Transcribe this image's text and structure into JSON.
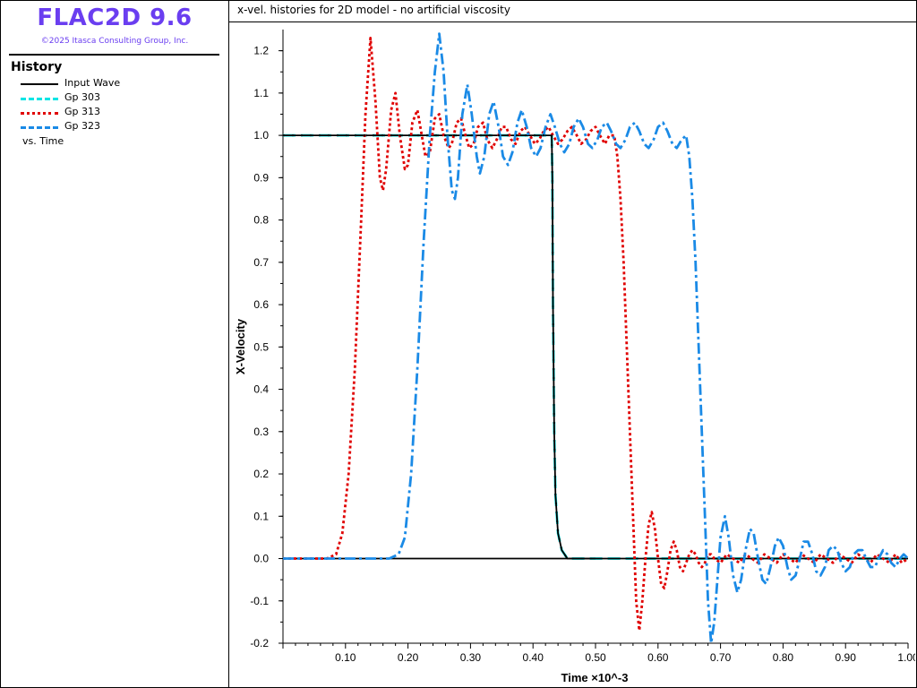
{
  "app": {
    "title": "FLAC2D 9.6",
    "copyright": "©2025 Itasca Consulting Group, Inc."
  },
  "legend": {
    "title": "History",
    "items": [
      {
        "label": "Input Wave",
        "color": "#000000",
        "dash": "solid"
      },
      {
        "label": "Gp 303",
        "color": "#00e5e5",
        "dash": "long-dash"
      },
      {
        "label": "Gp 313",
        "color": "#e00000",
        "dash": "dotted"
      },
      {
        "label": "Gp 323",
        "color": "#1a8ae6",
        "dash": "dash-dot"
      }
    ],
    "vs_label": "vs. Time"
  },
  "chart_data": {
    "type": "line",
    "title": "x-vel. histories for 2D model - no artificial viscosity",
    "xlabel": "Time ×10^-3",
    "ylabel": "X-Velocity",
    "xlim": [
      0.0,
      1.0
    ],
    "ylim": [
      -0.2,
      1.25
    ],
    "x_ticks": [
      "0.10",
      "0.20",
      "0.30",
      "0.40",
      "0.50",
      "0.60",
      "0.70",
      "0.80",
      "0.90",
      "1.00"
    ],
    "y_ticks": [
      "1.2",
      "1.1",
      "1.0",
      "0.9",
      "0.8",
      "0.7",
      "0.6",
      "0.5",
      "0.4",
      "0.3",
      "0.2",
      "0.1",
      "0.0",
      "-0.1",
      "-0.2"
    ],
    "grid": false,
    "series": [
      {
        "name": "Input Wave",
        "color": "#000000",
        "points": [
          [
            0.0,
            0.0
          ],
          [
            1.0,
            0.0
          ]
        ]
      },
      {
        "name": "Input Wave",
        "color": "#000000",
        "points": [
          [
            0.0,
            1.0
          ],
          [
            0.43,
            1.0
          ],
          [
            0.431,
            0.9
          ],
          [
            0.432,
            0.6
          ],
          [
            0.434,
            0.3
          ],
          [
            0.436,
            0.15
          ],
          [
            0.44,
            0.06
          ],
          [
            0.446,
            0.02
          ],
          [
            0.455,
            0.0
          ],
          [
            0.5,
            0.0
          ]
        ]
      },
      {
        "name": "Gp 303",
        "color": "#00e5e5",
        "points": [
          [
            0.0,
            1.0
          ],
          [
            0.43,
            1.0
          ],
          [
            0.431,
            0.9
          ],
          [
            0.432,
            0.6
          ],
          [
            0.434,
            0.3
          ],
          [
            0.436,
            0.15
          ],
          [
            0.44,
            0.06
          ],
          [
            0.446,
            0.02
          ],
          [
            0.455,
            0.0
          ],
          [
            1.0,
            0.0
          ]
        ]
      },
      {
        "name": "Gp 313",
        "color": "#e00000",
        "points": [
          [
            0.0,
            0.0
          ],
          [
            0.07,
            0.0
          ],
          [
            0.085,
            0.01
          ],
          [
            0.095,
            0.06
          ],
          [
            0.105,
            0.2
          ],
          [
            0.115,
            0.45
          ],
          [
            0.125,
            0.8
          ],
          [
            0.132,
            1.05
          ],
          [
            0.14,
            1.23
          ],
          [
            0.148,
            1.08
          ],
          [
            0.155,
            0.9
          ],
          [
            0.16,
            0.87
          ],
          [
            0.165,
            0.92
          ],
          [
            0.173,
            1.06
          ],
          [
            0.18,
            1.1
          ],
          [
            0.187,
            1.0
          ],
          [
            0.195,
            0.92
          ],
          [
            0.2,
            0.93
          ],
          [
            0.207,
            1.03
          ],
          [
            0.215,
            1.06
          ],
          [
            0.222,
            1.0
          ],
          [
            0.228,
            0.95
          ],
          [
            0.235,
            0.96
          ],
          [
            0.243,
            1.04
          ],
          [
            0.25,
            1.05
          ],
          [
            0.257,
            1.0
          ],
          [
            0.265,
            0.97
          ],
          [
            0.27,
            0.98
          ],
          [
            0.278,
            1.03
          ],
          [
            0.285,
            1.04
          ],
          [
            0.292,
            1.0
          ],
          [
            0.298,
            0.97
          ],
          [
            0.305,
            0.98
          ],
          [
            0.312,
            1.02
          ],
          [
            0.32,
            1.03
          ],
          [
            0.327,
            0.99
          ],
          [
            0.335,
            0.97
          ],
          [
            0.342,
            0.99
          ],
          [
            0.35,
            1.02
          ],
          [
            0.357,
            1.02
          ],
          [
            0.365,
            0.99
          ],
          [
            0.372,
            0.98
          ],
          [
            0.38,
            1.01
          ],
          [
            0.387,
            1.02
          ],
          [
            0.395,
            1.0
          ],
          [
            0.403,
            0.98
          ],
          [
            0.41,
            0.99
          ],
          [
            0.417,
            1.01
          ],
          [
            0.425,
            1.02
          ],
          [
            0.432,
            1.0
          ],
          [
            0.44,
            0.98
          ],
          [
            0.447,
            0.99
          ],
          [
            0.455,
            1.01
          ],
          [
            0.462,
            1.02
          ],
          [
            0.47,
            1.0
          ],
          [
            0.477,
            0.98
          ],
          [
            0.485,
            0.99
          ],
          [
            0.492,
            1.01
          ],
          [
            0.5,
            1.02
          ],
          [
            0.507,
            1.0
          ],
          [
            0.515,
            0.98
          ],
          [
            0.522,
            1.0
          ],
          [
            0.53,
            1.0
          ],
          [
            0.535,
            0.95
          ],
          [
            0.54,
            0.85
          ],
          [
            0.545,
            0.7
          ],
          [
            0.55,
            0.5
          ],
          [
            0.555,
            0.3
          ],
          [
            0.56,
            0.1
          ],
          [
            0.565,
            -0.1
          ],
          [
            0.57,
            -0.17
          ],
          [
            0.575,
            -0.1
          ],
          [
            0.58,
            0.0
          ],
          [
            0.585,
            0.08
          ],
          [
            0.59,
            0.11
          ],
          [
            0.595,
            0.07
          ],
          [
            0.6,
            0.0
          ],
          [
            0.605,
            -0.06
          ],
          [
            0.61,
            -0.07
          ],
          [
            0.615,
            -0.03
          ],
          [
            0.62,
            0.02
          ],
          [
            0.625,
            0.04
          ],
          [
            0.63,
            0.02
          ],
          [
            0.635,
            -0.02
          ],
          [
            0.64,
            -0.03
          ],
          [
            0.645,
            -0.01
          ],
          [
            0.65,
            0.01
          ],
          [
            0.655,
            0.02
          ],
          [
            0.66,
            0.01
          ],
          [
            0.665,
            -0.01
          ],
          [
            0.67,
            -0.02
          ],
          [
            0.675,
            -0.01
          ],
          [
            0.68,
            0.01
          ],
          [
            0.685,
            0.01
          ],
          [
            0.69,
            0.0
          ],
          [
            0.7,
            -0.01
          ],
          [
            0.71,
            0.01
          ],
          [
            0.72,
            0.0
          ],
          [
            0.73,
            -0.01
          ],
          [
            0.74,
            0.01
          ],
          [
            0.75,
            0.0
          ],
          [
            0.76,
            -0.01
          ],
          [
            0.77,
            0.01
          ],
          [
            0.78,
            0.0
          ],
          [
            0.79,
            -0.01
          ],
          [
            0.8,
            0.01
          ],
          [
            0.81,
            0.0
          ],
          [
            0.82,
            -0.01
          ],
          [
            0.83,
            0.01
          ],
          [
            0.84,
            0.0
          ],
          [
            0.85,
            -0.01
          ],
          [
            0.86,
            0.01
          ],
          [
            0.87,
            0.0
          ],
          [
            0.88,
            -0.01
          ],
          [
            0.89,
            0.01
          ],
          [
            0.9,
            0.0
          ],
          [
            0.91,
            -0.01
          ],
          [
            0.92,
            0.01
          ],
          [
            0.93,
            0.0
          ],
          [
            0.94,
            -0.01
          ],
          [
            0.95,
            0.01
          ],
          [
            0.96,
            0.0
          ],
          [
            0.97,
            -0.01
          ],
          [
            0.98,
            0.01
          ],
          [
            0.99,
            -0.01
          ],
          [
            1.0,
            0.0
          ]
        ]
      },
      {
        "name": "Gp 323",
        "color": "#1a8ae6",
        "points": [
          [
            0.0,
            0.0
          ],
          [
            0.17,
            0.0
          ],
          [
            0.185,
            0.01
          ],
          [
            0.195,
            0.05
          ],
          [
            0.205,
            0.2
          ],
          [
            0.215,
            0.45
          ],
          [
            0.225,
            0.75
          ],
          [
            0.235,
            1.0
          ],
          [
            0.243,
            1.15
          ],
          [
            0.25,
            1.24
          ],
          [
            0.257,
            1.15
          ],
          [
            0.263,
            1.0
          ],
          [
            0.27,
            0.87
          ],
          [
            0.275,
            0.85
          ],
          [
            0.28,
            0.9
          ],
          [
            0.287,
            1.05
          ],
          [
            0.295,
            1.12
          ],
          [
            0.302,
            1.05
          ],
          [
            0.31,
            0.95
          ],
          [
            0.315,
            0.91
          ],
          [
            0.322,
            0.95
          ],
          [
            0.33,
            1.05
          ],
          [
            0.337,
            1.08
          ],
          [
            0.345,
            1.02
          ],
          [
            0.352,
            0.95
          ],
          [
            0.36,
            0.93
          ],
          [
            0.367,
            0.96
          ],
          [
            0.375,
            1.03
          ],
          [
            0.382,
            1.06
          ],
          [
            0.39,
            1.02
          ],
          [
            0.397,
            0.97
          ],
          [
            0.405,
            0.95
          ],
          [
            0.412,
            0.97
          ],
          [
            0.42,
            1.02
          ],
          [
            0.428,
            1.05
          ],
          [
            0.435,
            1.02
          ],
          [
            0.443,
            0.98
          ],
          [
            0.45,
            0.96
          ],
          [
            0.458,
            0.98
          ],
          [
            0.465,
            1.02
          ],
          [
            0.473,
            1.04
          ],
          [
            0.48,
            1.02
          ],
          [
            0.488,
            0.98
          ],
          [
            0.495,
            0.97
          ],
          [
            0.503,
            0.99
          ],
          [
            0.51,
            1.02
          ],
          [
            0.518,
            1.03
          ],
          [
            0.525,
            1.01
          ],
          [
            0.533,
            0.98
          ],
          [
            0.54,
            0.97
          ],
          [
            0.548,
            0.99
          ],
          [
            0.555,
            1.02
          ],
          [
            0.563,
            1.03
          ],
          [
            0.57,
            1.01
          ],
          [
            0.578,
            0.98
          ],
          [
            0.585,
            0.97
          ],
          [
            0.593,
            0.99
          ],
          [
            0.6,
            1.02
          ],
          [
            0.608,
            1.03
          ],
          [
            0.615,
            1.01
          ],
          [
            0.623,
            0.98
          ],
          [
            0.63,
            0.97
          ],
          [
            0.638,
            0.99
          ],
          [
            0.645,
            1.0
          ],
          [
            0.65,
            0.95
          ],
          [
            0.655,
            0.85
          ],
          [
            0.66,
            0.7
          ],
          [
            0.665,
            0.5
          ],
          [
            0.67,
            0.3
          ],
          [
            0.675,
            0.1
          ],
          [
            0.68,
            -0.1
          ],
          [
            0.685,
            -0.2
          ],
          [
            0.69,
            -0.15
          ],
          [
            0.695,
            -0.05
          ],
          [
            0.7,
            0.05
          ],
          [
            0.707,
            0.1
          ],
          [
            0.713,
            0.05
          ],
          [
            0.72,
            -0.04
          ],
          [
            0.727,
            -0.08
          ],
          [
            0.733,
            -0.05
          ],
          [
            0.74,
            0.02
          ],
          [
            0.747,
            0.07
          ],
          [
            0.753,
            0.06
          ],
          [
            0.76,
            0.0
          ],
          [
            0.767,
            -0.05
          ],
          [
            0.773,
            -0.06
          ],
          [
            0.78,
            -0.02
          ],
          [
            0.787,
            0.03
          ],
          [
            0.793,
            0.05
          ],
          [
            0.8,
            0.03
          ],
          [
            0.807,
            -0.02
          ],
          [
            0.813,
            -0.05
          ],
          [
            0.82,
            -0.04
          ],
          [
            0.827,
            0.0
          ],
          [
            0.833,
            0.04
          ],
          [
            0.84,
            0.04
          ],
          [
            0.847,
            0.01
          ],
          [
            0.853,
            -0.03
          ],
          [
            0.86,
            -0.04
          ],
          [
            0.867,
            -0.02
          ],
          [
            0.873,
            0.02
          ],
          [
            0.88,
            0.03
          ],
          [
            0.887,
            0.02
          ],
          [
            0.893,
            -0.01
          ],
          [
            0.9,
            -0.03
          ],
          [
            0.907,
            -0.02
          ],
          [
            0.913,
            0.01
          ],
          [
            0.92,
            0.02
          ],
          [
            0.927,
            0.02
          ],
          [
            0.933,
            0.0
          ],
          [
            0.94,
            -0.02
          ],
          [
            0.947,
            -0.02
          ],
          [
            0.953,
            0.0
          ],
          [
            0.96,
            0.02
          ],
          [
            0.967,
            0.01
          ],
          [
            0.973,
            -0.01
          ],
          [
            0.98,
            -0.02
          ],
          [
            0.987,
            0.0
          ],
          [
            0.993,
            0.01
          ],
          [
            1.0,
            0.0
          ]
        ]
      }
    ]
  }
}
